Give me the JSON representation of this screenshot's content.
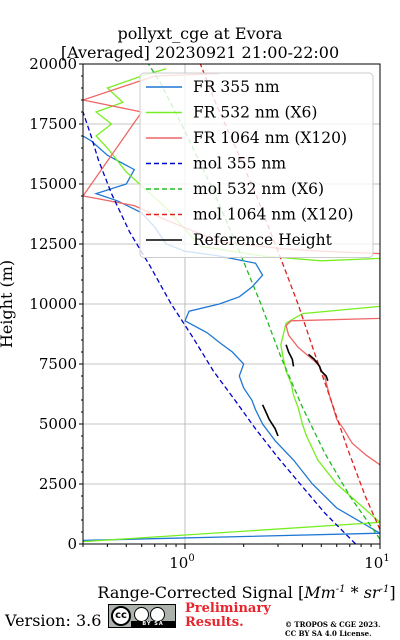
{
  "title_line1": "pollyxt_cge at Evora",
  "title_line2": "[Averaged] 20230921 21:00-22:00",
  "footer": {
    "version": "Version: 3.6",
    "license_badge": "cc-by-sa-icon",
    "preliminary_line1": "Preliminary",
    "preliminary_line2": "Results.",
    "copyright_line1": "© TROPOS & CGE 2023.",
    "copyright_line2": "CC BY SA 4.0 License."
  },
  "chart_data": {
    "type": "line",
    "xlabel": "Range-Corrected Signal [Mm^-1*sr^-1]",
    "ylabel": "Height (m)",
    "x_scale": "log",
    "xlim": [
      0.3,
      10
    ],
    "ylim": [
      0,
      20000
    ],
    "x_tick_labels": [
      "10^0",
      "10^1"
    ],
    "y_ticks": [
      0,
      2500,
      5000,
      7500,
      10000,
      12500,
      15000,
      17500,
      20000
    ],
    "grid": true,
    "legend_position": "top-right",
    "series": [
      {
        "name": "FR 355 nm",
        "color": "#1f77d4",
        "style": "solid",
        "points": [
          [
            0.3,
            150
          ],
          [
            10,
            450
          ],
          [
            6,
            1500
          ],
          [
            4.5,
            2500
          ],
          [
            3.6,
            3500
          ],
          [
            2.9,
            4300
          ],
          [
            2.5,
            5000
          ],
          [
            2.3,
            5600
          ],
          [
            2.2,
            6000
          ],
          [
            2.0,
            6500
          ],
          [
            1.9,
            7000
          ],
          [
            2.0,
            7500
          ],
          [
            1.75,
            8000
          ],
          [
            1.5,
            8400
          ],
          [
            1.3,
            8800
          ],
          [
            1.0,
            9300
          ],
          [
            1.05,
            9700
          ],
          [
            1.5,
            10000
          ],
          [
            1.9,
            10300
          ],
          [
            2.2,
            10700
          ],
          [
            2.5,
            11200
          ],
          [
            2.3,
            11700
          ],
          [
            1.5,
            12000
          ],
          [
            1.0,
            12200
          ],
          [
            0.8,
            12500
          ],
          [
            0.7,
            13200
          ],
          [
            0.6,
            13800
          ],
          [
            0.45,
            14300
          ],
          [
            0.35,
            14600
          ],
          [
            0.5,
            15000
          ],
          [
            0.55,
            15600
          ],
          [
            0.4,
            16200
          ],
          [
            0.33,
            16800
          ],
          [
            0.3,
            17000
          ]
        ]
      },
      {
        "name": "FR 532 nm (X6)",
        "color": "#77ee22",
        "style": "solid",
        "points": [
          [
            0.3,
            100
          ],
          [
            10,
            900
          ],
          [
            6,
            2500
          ],
          [
            4.8,
            3500
          ],
          [
            4.2,
            4500
          ],
          [
            4.0,
            5000
          ],
          [
            3.8,
            5700
          ],
          [
            3.6,
            6200
          ],
          [
            3.5,
            6700
          ],
          [
            3.3,
            7200
          ],
          [
            3.2,
            7700
          ],
          [
            3.1,
            8300
          ],
          [
            3.3,
            9200
          ],
          [
            4.0,
            9600
          ],
          [
            10,
            9900
          ],
          [
            10,
            11900
          ],
          [
            5,
            11800
          ],
          [
            2.5,
            12000
          ],
          [
            1.2,
            12400
          ],
          [
            0.8,
            14000
          ],
          [
            0.5,
            15500
          ],
          [
            0.4,
            16500
          ],
          [
            0.35,
            17000
          ],
          [
            0.42,
            17500
          ],
          [
            0.35,
            18000
          ],
          [
            0.48,
            18400
          ],
          [
            0.4,
            19000
          ],
          [
            0.6,
            19500
          ],
          [
            0.8,
            19800
          ]
        ]
      },
      {
        "name": "FR 1064 nm (X120)",
        "color": "#ee6666",
        "style": "solid",
        "points": [
          [
            10,
            3300
          ],
          [
            8.5,
            3700
          ],
          [
            7.2,
            4200
          ],
          [
            6.5,
            4800
          ],
          [
            6.0,
            5200
          ],
          [
            5.7,
            5800
          ],
          [
            5.5,
            6200
          ],
          [
            5.2,
            7000
          ],
          [
            4.8,
            7500
          ],
          [
            4.2,
            7900
          ],
          [
            3.8,
            8200
          ],
          [
            3.4,
            8700
          ],
          [
            3.3,
            9100
          ],
          [
            3.5,
            9300
          ],
          [
            10,
            9400
          ],
          [
            10,
            12100
          ],
          [
            5,
            12200
          ],
          [
            3.2,
            12300
          ],
          [
            1.5,
            12600
          ],
          [
            0.8,
            13500
          ],
          [
            0.55,
            14100
          ],
          [
            0.35,
            14400
          ],
          [
            0.3,
            14500
          ],
          [
            0.6,
            18000
          ],
          [
            0.3,
            18500
          ],
          [
            0.7,
            19500
          ],
          [
            1.5,
            19600
          ]
        ]
      },
      {
        "name": "mol 355 nm",
        "color": "#0000cc",
        "style": "dashed",
        "points": [
          [
            7.5,
            0
          ],
          [
            5.2,
            1300
          ],
          [
            3.9,
            2500
          ],
          [
            3.0,
            3600
          ],
          [
            2.3,
            4800
          ],
          [
            1.8,
            6000
          ],
          [
            1.4,
            7200
          ],
          [
            1.1,
            8600
          ],
          [
            0.85,
            10000
          ],
          [
            0.66,
            11600
          ],
          [
            0.52,
            13000
          ],
          [
            0.42,
            14600
          ],
          [
            0.36,
            16000
          ],
          [
            0.33,
            17000
          ],
          [
            0.3,
            18000
          ]
        ]
      },
      {
        "name": "mol 532 nm (X6)",
        "color": "#22bb22",
        "style": "dashed",
        "points": [
          [
            10,
            200
          ],
          [
            7.0,
            2000
          ],
          [
            5.2,
            3800
          ],
          [
            4.0,
            5700
          ],
          [
            3.1,
            7800
          ],
          [
            2.45,
            10000
          ],
          [
            1.9,
            12200
          ],
          [
            1.4,
            14700
          ],
          [
            1.0,
            17200
          ],
          [
            0.75,
            19200
          ],
          [
            0.65,
            20000
          ]
        ]
      },
      {
        "name": "mol 1064 nm (X120)",
        "color": "#dd2222",
        "style": "dashed",
        "points": [
          [
            10,
            600
          ],
          [
            8.4,
            2000
          ],
          [
            6.8,
            4000
          ],
          [
            5.6,
            6000
          ],
          [
            4.6,
            8000
          ],
          [
            3.8,
            10000
          ],
          [
            3.0,
            12200
          ],
          [
            2.3,
            14600
          ],
          [
            1.8,
            16600
          ],
          [
            1.45,
            18300
          ],
          [
            1.2,
            20000
          ]
        ]
      },
      {
        "name": "Reference Height",
        "color": "#000000",
        "style": "solid",
        "points": [
          [
            2.5,
            5800
          ],
          [
            2.6,
            5500
          ],
          [
            2.7,
            5200
          ],
          [
            2.9,
            4800
          ],
          [
            3.0,
            4500
          ]
        ],
        "extra_segments": [
          [
            [
              3.3,
              8300
            ],
            [
              3.4,
              8000
            ],
            [
              3.55,
              7700
            ],
            [
              3.6,
              7400
            ]
          ],
          [
            [
              4.3,
              7900
            ],
            [
              4.6,
              7700
            ],
            [
              4.9,
              7400
            ],
            [
              5.0,
              7200
            ],
            [
              5.3,
              7000
            ],
            [
              5.4,
              6800
            ]
          ]
        ]
      }
    ]
  }
}
